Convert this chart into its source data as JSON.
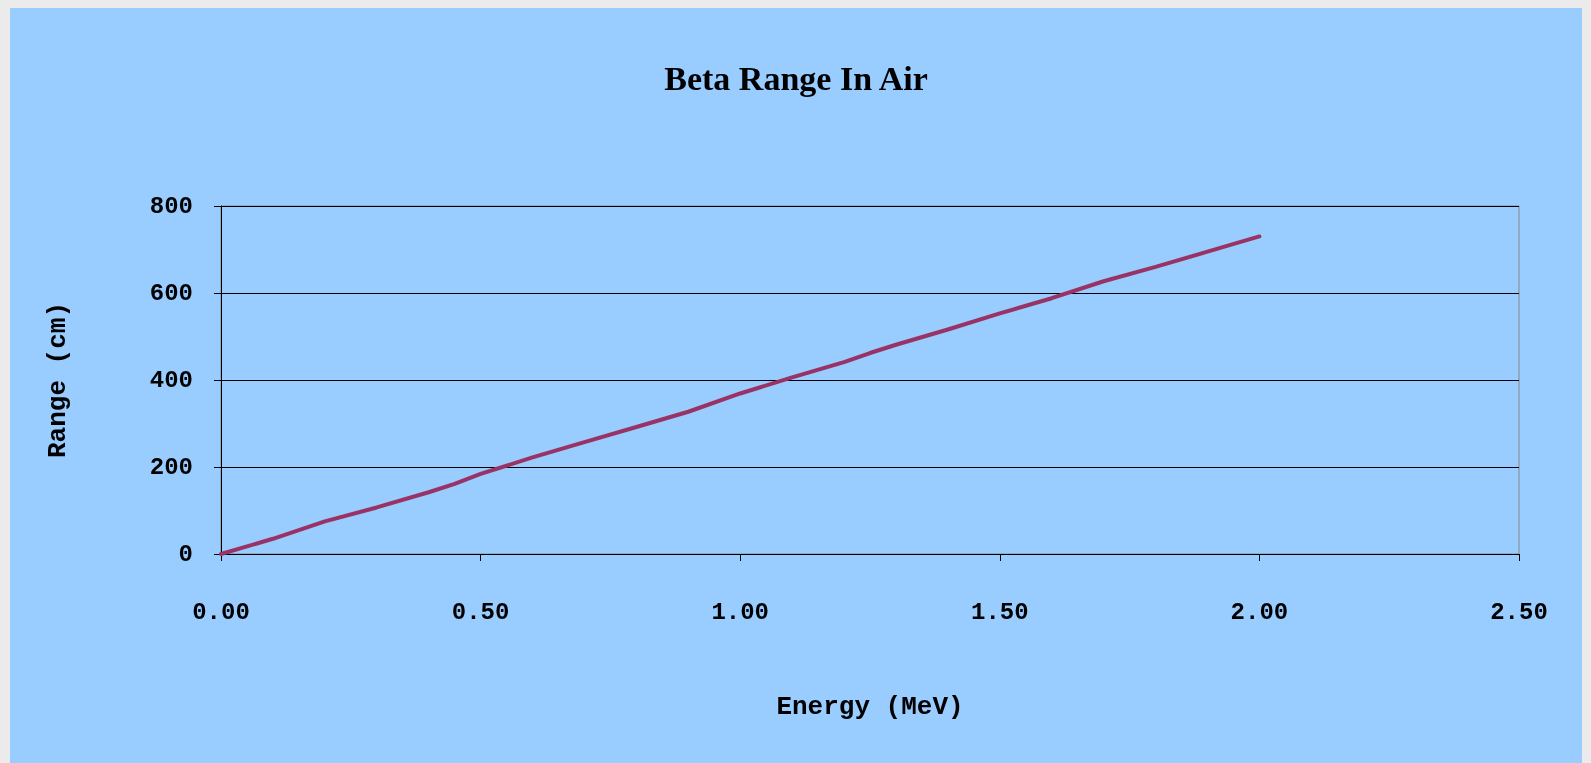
{
  "chart_data": {
    "type": "line",
    "title": "Beta Range In Air",
    "xlabel": "Energy (MeV)",
    "ylabel": "Range (cm)",
    "x": [
      0,
      0.1,
      0.2,
      0.3,
      0.4,
      0.45,
      0.5,
      0.6,
      0.7,
      0.8,
      0.9,
      1.0,
      1.1,
      1.2,
      1.25,
      1.3,
      1.4,
      1.5,
      1.6,
      1.7,
      1.8,
      1.9,
      2.0
    ],
    "series": [
      {
        "color": "#993366",
        "values": [
          0,
          35,
          75,
          107,
          142,
          161,
          184,
          222,
          257,
          292,
          327,
          369,
          406,
          441,
          462,
          481,
          516,
          553,
          588,
          627,
          660,
          695,
          730
        ]
      }
    ],
    "xlim": [
      0,
      2.5
    ],
    "xticks": [
      {
        "value": 0,
        "label": "0.00"
      },
      {
        "value": 0.5,
        "label": "0.50"
      },
      {
        "value": 1,
        "label": "1.00"
      },
      {
        "value": 1.5,
        "label": "1.50"
      },
      {
        "value": 2,
        "label": "2.00"
      },
      {
        "value": 2.5,
        "label": "2.50"
      }
    ],
    "ylim": [
      0,
      800
    ],
    "yticks": [
      0,
      200,
      400,
      600,
      800
    ],
    "grid": "y",
    "marker": "none",
    "line_style": "solid"
  }
}
